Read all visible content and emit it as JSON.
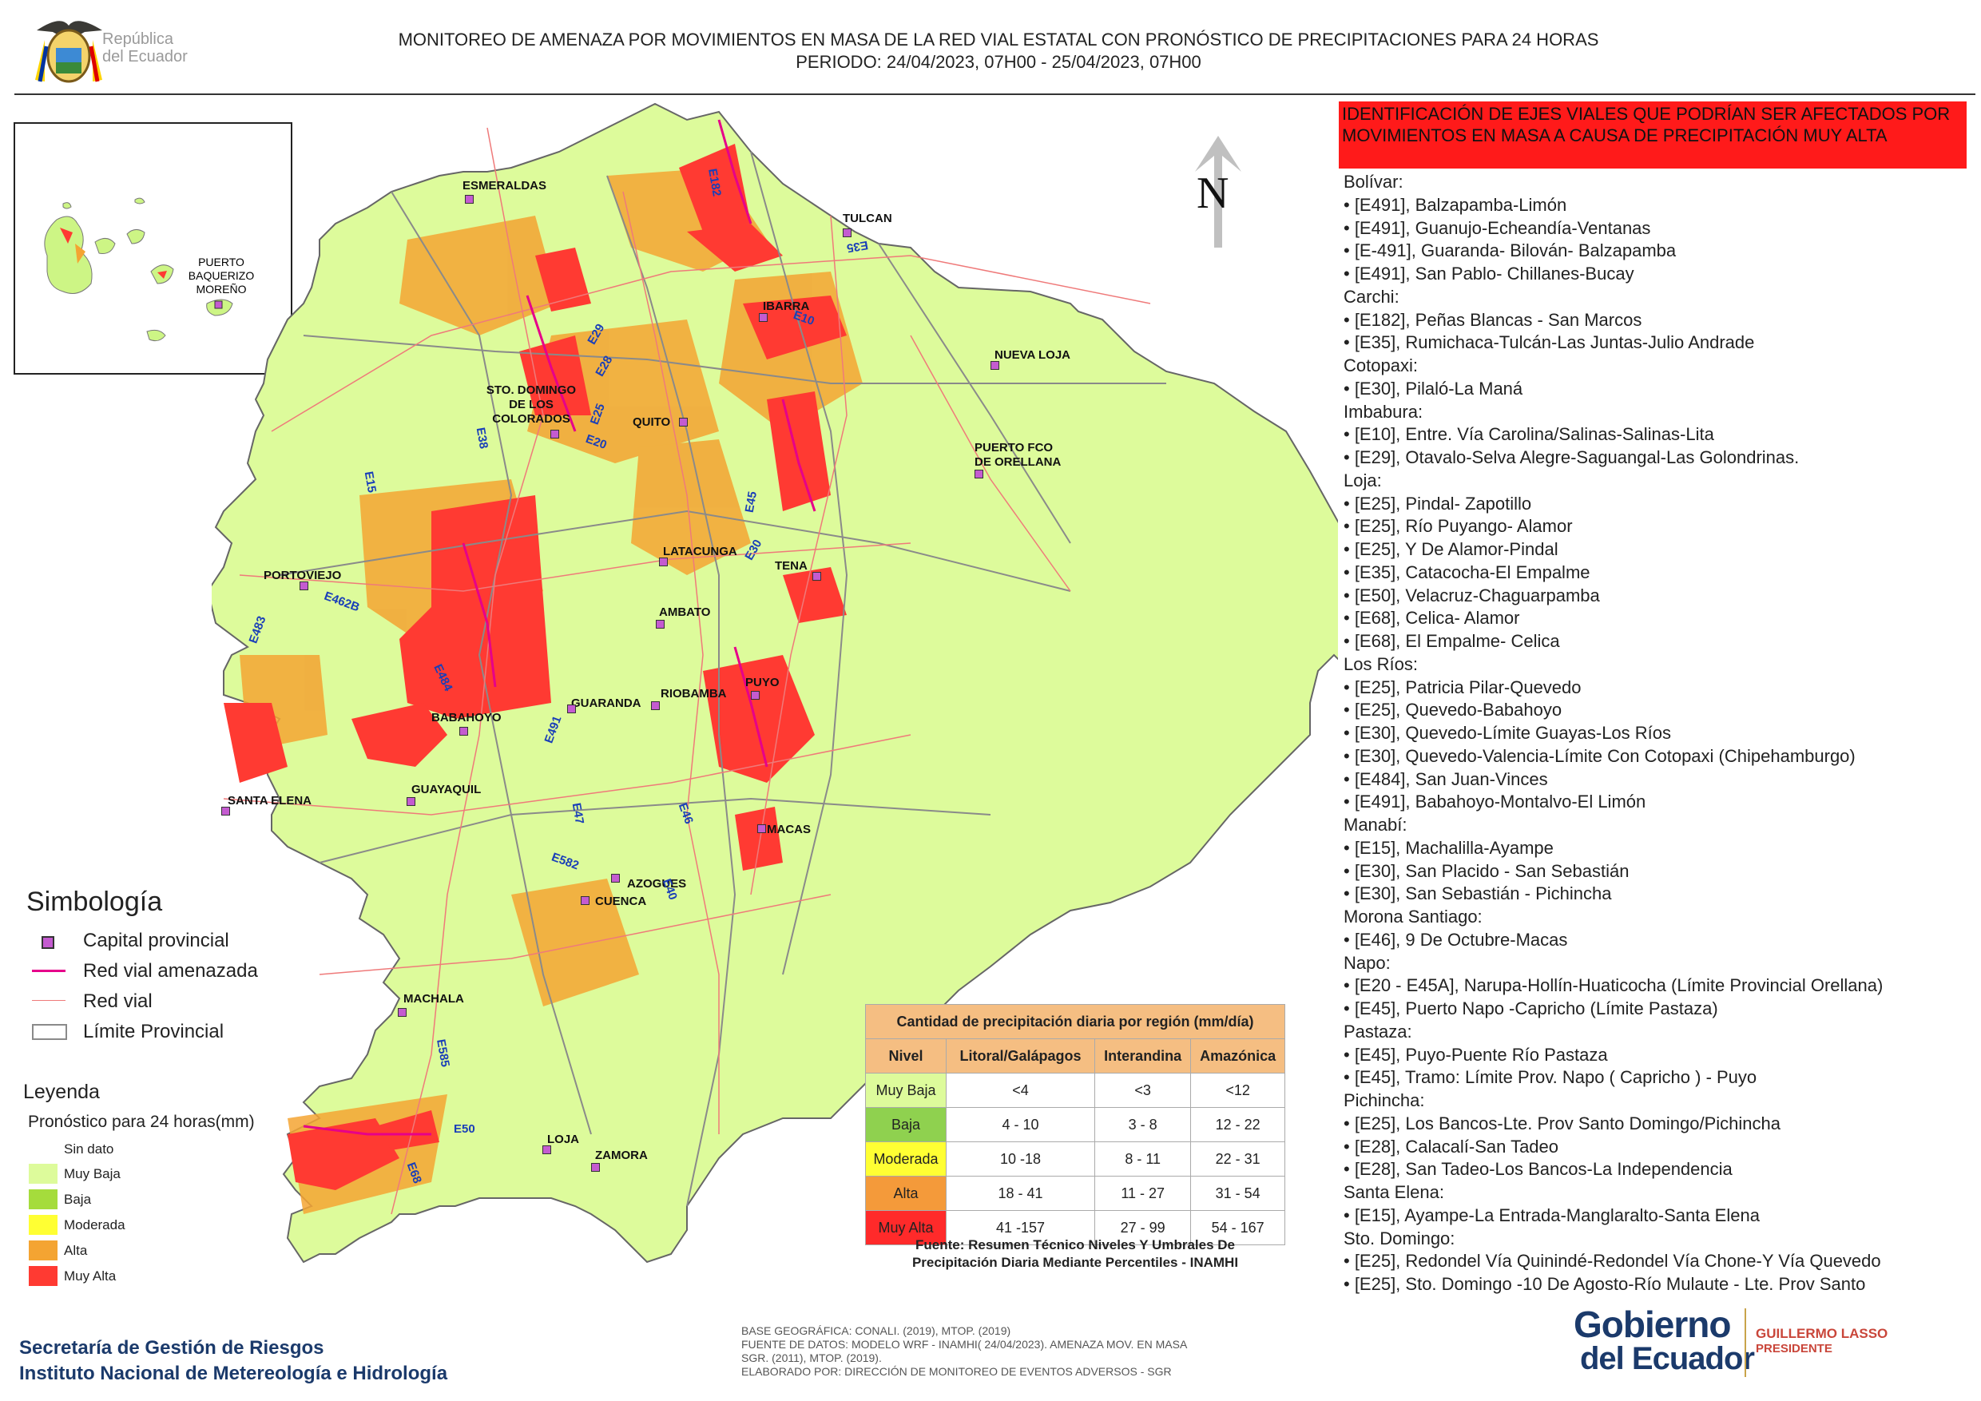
{
  "header": {
    "logo_line1": "República",
    "logo_line2": "del Ecuador",
    "title_line1": "MONITOREO DE AMENAZA POR MOVIMIENTOS EN MASA DE LA RED VIAL  ESTATAL  CON PRONÓSTICO  DE  PRECIPITACIONES PARA 24 HORAS",
    "title_line2": "PERIODO: 24/04/2023, 07H00 - 25/04/2023, 07H00"
  },
  "map": {
    "north_label": "N",
    "inset_label": "PUERTO BAQUERIZO MORENO",
    "cities": [
      "ESMERALDAS",
      "TULCAN",
      "IBARRA",
      "NUEVA LOJA",
      "STO. DOMINGO DE LOS COLORADOS",
      "QUITO",
      "PUERTO FCO DE ORELLANA",
      "LATACUNGA",
      "TENA",
      "PORTOVIEJO",
      "AMBATO",
      "PUYO",
      "GUARANDA",
      "RIOBAMBA",
      "BABAHOYO",
      "GUAYAQUIL",
      "SANTA ELENA",
      "MACAS",
      "AZOGUES",
      "CUENCA",
      "MACHALA",
      "LOJA",
      "ZAMORA"
    ],
    "roads": [
      "E182",
      "E35",
      "E10",
      "E29",
      "E28",
      "E25",
      "E20",
      "E38",
      "E15",
      "E45",
      "E30",
      "E462B",
      "E483",
      "E484",
      "E491",
      "E47",
      "E46",
      "E40",
      "E582",
      "E585",
      "E50",
      "E68"
    ],
    "colors": {
      "muy_baja": "#ddfb9b",
      "baja": "#a5dc3c",
      "moderada": "#ffff33",
      "alta": "#f4a432",
      "muy_alta": "#ff3a32",
      "road_threat": "#e6008a",
      "road": "#ef7a7a",
      "boundary": "#8a8a8a"
    }
  },
  "simbologia": {
    "title": "Simbología",
    "items": [
      "Capital provincial",
      "Red vial amenazada",
      "Red vial",
      "Límite Provincial"
    ]
  },
  "leyenda": {
    "title": "Leyenda",
    "subtitle": "Pronóstico para 24 horas(mm)",
    "items": [
      {
        "label": "Sin dato",
        "color": "#ffffff"
      },
      {
        "label": " Muy Baja",
        "color": "#ddfb9b"
      },
      {
        "label": "Baja",
        "color": "#a5dc3c"
      },
      {
        "label": "Moderada",
        "color": "#ffff33"
      },
      {
        "label": "Alta",
        "color": "#f4a432"
      },
      {
        "label": "Muy Alta",
        "color": "#ff3a32"
      }
    ]
  },
  "precip_table": {
    "caption": "Cantidad de precipitación diaria por región (mm/día)",
    "headers": [
      "Nivel",
      "Litoral/Galápagos",
      "Interandina",
      "Amazónica"
    ],
    "rows": [
      {
        "nivel": "Muy Baja",
        "color": "#ddfb9b",
        "litoral": "<4",
        "interandina": "<3",
        "amazonica": "<12"
      },
      {
        "nivel": "Baja",
        "color": "#8fd14f",
        "litoral": "4 - 10",
        "interandina": "3 - 8",
        "amazonica": "12 - 22"
      },
      {
        "nivel": "Moderada",
        "color": "#ffff33",
        "litoral": "10 -18",
        "interandina": "8 - 11",
        "amazonica": "22 - 31"
      },
      {
        "nivel": "Alta",
        "color": "#f49a3a",
        "litoral": "18 - 41",
        "interandina": "11 - 27",
        "amazonica": "31 - 54"
      },
      {
        "nivel": "Muy Alta",
        "color": "#ff2a2a",
        "litoral": "41 -157",
        "interandina": "27 - 99",
        "amazonica": "54 - 167"
      }
    ],
    "source_line1": "Fuente: Resumen Técnico Niveles Y Umbrales De",
    "source_line2": "Precipitación Diaria Mediante Percentiles - INAMHI"
  },
  "panel": {
    "header": "IDENTIFICACIÓN DE EJES VIALES QUE PODRÍAN SER AFECTADOS POR MOVIMIENTOS EN MASA A CAUSA DE PRECIPITACIÓN MUY ALTA",
    "lines": [
      "Bolívar:",
      "• [E491], Balzapamba-Limón",
      "• [E491], Guanujo-Echeandía-Ventanas",
      "• [E-491], Guaranda- Bilován- Balzapamba",
      "• [E491], San Pablo- Chillanes-Bucay",
      "Carchi:",
      "• [E182], Peñas Blancas - San Marcos",
      "• [E35], Rumichaca-Tulcán-Las Juntas-Julio Andrade",
      "Cotopaxi:",
      "• [E30], Pilaló-La Maná",
      "Imbabura:",
      "• [E10], Entre. Vía Carolina/Salinas-Salinas-Lita",
      "• [E29], Otavalo-Selva Alegre-Saguangal-Las Golondrinas.",
      "Loja:",
      "• [E25], Pindal- Zapotillo",
      "• [E25], Río Puyango- Alamor",
      "• [E25], Y De Alamor-Pindal",
      "• [E35], Catacocha-El Empalme",
      "• [E50], Velacruz-Chaguarpamba",
      "• [E68], Celica- Alamor",
      "• [E68], El Empalme- Celica",
      "Los Ríos:",
      "• [E25], Patricia Pilar-Quevedo",
      "• [E25], Quevedo-Babahoyo",
      "• [E30], Quevedo-Límite Guayas-Los Ríos",
      "• [E30], Quevedo-Valencia-Límite Con Cotopaxi (Chipehamburgo)",
      "• [E484], San Juan-Vinces",
      "• [E491], Babahoyo-Montalvo-El Limón",
      "Manabí:",
      "• [E15], Machalilla-Ayampe",
      "• [E30], San Placido - San Sebastián",
      "• [E30], San Sebastián - Pichincha",
      "Morona Santiago:",
      "• [E46], 9 De Octubre-Macas",
      "Napo:",
      "• [E20 - E45A], Narupa-Hollín-Huaticocha (Límite Provincial Orellana)",
      "• [E45], Puerto Napo -Capricho (Límite Pastaza)",
      "Pastaza:",
      "• [E45], Puyo-Puente Río Pastaza",
      "• [E45], Tramo: Límite Prov. Napo ( Capricho ) - Puyo",
      "Pichincha:",
      "• [E25], Los Bancos-Lte. Prov Santo Domingo/Pichincha",
      "• [E28], Calacalí-San Tadeo",
      "• [E28], San Tadeo-Los Bancos-La Independencia",
      "Santa Elena:",
      "• [E15], Ayampe-La Entrada-Manglaralto-Santa Elena",
      "Sto. Domingo:",
      "• [E25], Redondel Vía Quinindé-Redondel Vía Chone-Y Vía Quevedo",
      "• [E25], Sto. Domingo -10 De Agosto-Río Mulaute - Lte. Prov Santo"
    ]
  },
  "footer": {
    "credit_line1": "Secretaría de Gestión de Riesgos",
    "credit_line2": "Instituto Nacional de Metereología e Hidrología",
    "base_lines": [
      "BASE GEOGRÁFICA: CONALI. (2019), MTOP. (2019)",
      "FUENTE DE DATOS: MODELO WRF - INAMHI( 24/04/2023).  AMENAZA MOV. EN MASA",
      "SGR. (2011), MTOP. (2019).",
      "ELABORADO POR: DIRECCIÓN DE MONITOREO DE EVENTOS ADVERSOS - SGR"
    ],
    "gob_line1": "Gobierno",
    "gob_line2": "del Ecuador",
    "president_name": "GUILLERMO LASSO",
    "president_title": "PRESIDENTE"
  }
}
